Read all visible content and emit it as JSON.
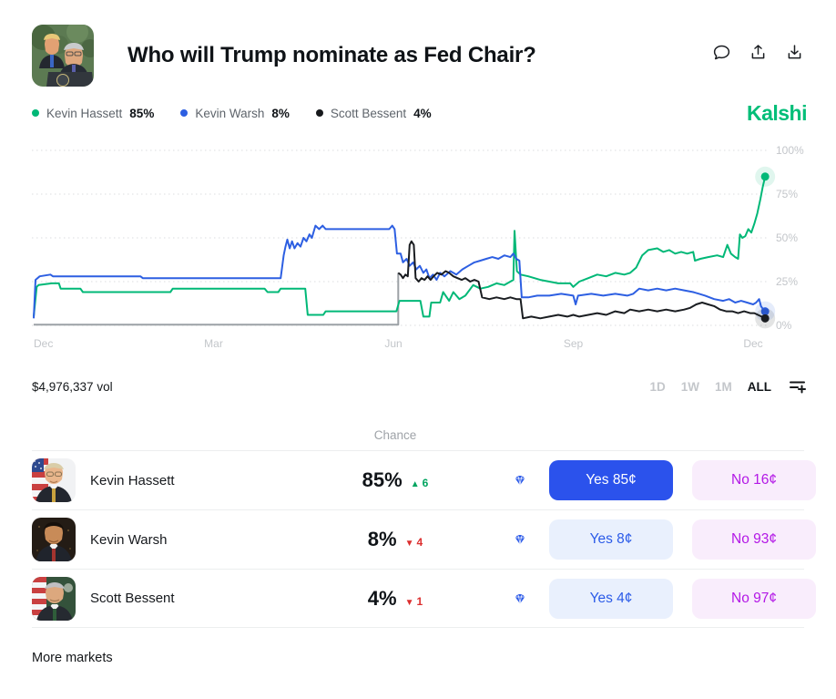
{
  "header": {
    "title": "Who will Trump nominate as Fed Chair?",
    "icons": [
      "comment-icon",
      "share-icon",
      "download-icon"
    ]
  },
  "legend": [
    {
      "name": "Kevin Hassett",
      "value": "85%",
      "color": "#00b877"
    },
    {
      "name": "Kevin Warsh",
      "value": "8%",
      "color": "#2d5fe2"
    },
    {
      "name": "Scott Bessent",
      "value": "4%",
      "color": "#17191c"
    }
  ],
  "brand": {
    "logo_text": "Kalshi",
    "color": "#00be78"
  },
  "chart_data": {
    "type": "line",
    "title": "Who will Trump nominate as Fed Chair?",
    "x_unit": "months (0 = first Dec, 12 = following Dec)",
    "xlim": [
      0,
      12.3
    ],
    "ylim": [
      0,
      100
    ],
    "grid": "dotted horizontal",
    "legend_position": "top-left",
    "x_ticks": [
      {
        "pos": 0,
        "label": "Dec"
      },
      {
        "pos": 3,
        "label": "Mar"
      },
      {
        "pos": 6,
        "label": "Jun"
      },
      {
        "pos": 9,
        "label": "Sep"
      },
      {
        "pos": 12,
        "label": "Dec"
      }
    ],
    "y_ticks": [
      {
        "pos": 100,
        "label": "100%"
      },
      {
        "pos": 75,
        "label": "75%"
      },
      {
        "pos": 50,
        "label": "50%"
      },
      {
        "pos": 25,
        "label": "25%"
      },
      {
        "pos": 0,
        "label": "0%"
      }
    ],
    "series": [
      {
        "name": "pre-listing baseline",
        "color": "#9ca1a6",
        "end_dot": false,
        "points": [
          [
            0,
            0.4
          ],
          [
            6.08,
            0.4
          ],
          [
            6.08,
            30
          ]
        ]
      },
      {
        "name": "Kevin Hassett",
        "color": "#00b877",
        "end_dot": true,
        "points": [
          [
            0,
            5
          ],
          [
            0.05,
            22
          ],
          [
            0.08,
            23
          ],
          [
            0.3,
            24
          ],
          [
            0.42,
            24
          ],
          [
            0.45,
            21
          ],
          [
            0.78,
            21
          ],
          [
            0.82,
            19
          ],
          [
            2.28,
            19
          ],
          [
            2.32,
            21
          ],
          [
            3.85,
            21
          ],
          [
            3.9,
            19
          ],
          [
            4.08,
            19
          ],
          [
            4.12,
            21
          ],
          [
            4.53,
            21
          ],
          [
            4.57,
            6
          ],
          [
            4.83,
            6
          ],
          [
            4.87,
            8
          ],
          [
            6.05,
            8
          ],
          [
            6.1,
            14
          ],
          [
            6.45,
            14
          ],
          [
            6.5,
            5
          ],
          [
            6.6,
            5
          ],
          [
            6.63,
            13
          ],
          [
            6.78,
            13
          ],
          [
            6.83,
            19
          ],
          [
            6.93,
            14
          ],
          [
            7.0,
            19
          ],
          [
            7.1,
            15
          ],
          [
            7.2,
            17
          ],
          [
            7.33,
            23
          ],
          [
            7.45,
            21
          ],
          [
            7.58,
            22
          ],
          [
            7.72,
            24
          ],
          [
            7.85,
            23
          ],
          [
            7.95,
            25
          ],
          [
            8.0,
            26
          ],
          [
            8.02,
            54
          ],
          [
            8.06,
            31
          ],
          [
            8.12,
            29
          ],
          [
            8.25,
            28
          ],
          [
            8.45,
            26
          ],
          [
            8.6,
            25
          ],
          [
            8.75,
            24
          ],
          [
            8.95,
            24
          ],
          [
            9.0,
            22
          ],
          [
            9.1,
            25
          ],
          [
            9.25,
            27
          ],
          [
            9.4,
            29
          ],
          [
            9.55,
            28
          ],
          [
            9.7,
            30
          ],
          [
            9.85,
            29
          ],
          [
            9.95,
            30
          ],
          [
            10.05,
            33
          ],
          [
            10.15,
            40
          ],
          [
            10.25,
            43
          ],
          [
            10.4,
            44
          ],
          [
            10.5,
            42
          ],
          [
            10.6,
            43
          ],
          [
            10.7,
            41
          ],
          [
            10.8,
            42
          ],
          [
            10.9,
            41
          ],
          [
            11.0,
            42
          ],
          [
            11.03,
            37
          ],
          [
            11.12,
            38
          ],
          [
            11.25,
            39
          ],
          [
            11.4,
            40
          ],
          [
            11.5,
            39
          ],
          [
            11.57,
            46
          ],
          [
            11.63,
            41
          ],
          [
            11.7,
            39
          ],
          [
            11.75,
            38
          ],
          [
            11.78,
            52
          ],
          [
            11.82,
            50
          ],
          [
            11.87,
            51
          ],
          [
            11.92,
            55
          ],
          [
            11.97,
            53
          ],
          [
            12.02,
            58
          ],
          [
            12.07,
            64
          ],
          [
            12.12,
            72
          ],
          [
            12.16,
            79
          ],
          [
            12.2,
            85
          ]
        ]
      },
      {
        "name": "Kevin Warsh",
        "color": "#2d5fe2",
        "end_dot": true,
        "points": [
          [
            0,
            4
          ],
          [
            0.03,
            26
          ],
          [
            0.1,
            28
          ],
          [
            0.28,
            29
          ],
          [
            0.32,
            28
          ],
          [
            1.78,
            28
          ],
          [
            1.82,
            27
          ],
          [
            4.12,
            27
          ],
          [
            4.17,
            40
          ],
          [
            4.2,
            45
          ],
          [
            4.23,
            49
          ],
          [
            4.27,
            44
          ],
          [
            4.31,
            48
          ],
          [
            4.35,
            44
          ],
          [
            4.4,
            47
          ],
          [
            4.45,
            45
          ],
          [
            4.5,
            50
          ],
          [
            4.55,
            48
          ],
          [
            4.6,
            52
          ],
          [
            4.64,
            50
          ],
          [
            4.7,
            57
          ],
          [
            4.76,
            55
          ],
          [
            4.82,
            57
          ],
          [
            4.87,
            55
          ],
          [
            5.93,
            55
          ],
          [
            5.98,
            57
          ],
          [
            6.02,
            55
          ],
          [
            6.06,
            41
          ],
          [
            6.12,
            41
          ],
          [
            6.16,
            36
          ],
          [
            6.22,
            38
          ],
          [
            6.27,
            34
          ],
          [
            6.33,
            36
          ],
          [
            6.38,
            32
          ],
          [
            6.44,
            34
          ],
          [
            6.5,
            30
          ],
          [
            6.55,
            32
          ],
          [
            6.6,
            27
          ],
          [
            6.66,
            29
          ],
          [
            6.72,
            26
          ],
          [
            6.78,
            30
          ],
          [
            6.85,
            28
          ],
          [
            6.95,
            31
          ],
          [
            7.05,
            29
          ],
          [
            7.15,
            32
          ],
          [
            7.25,
            34
          ],
          [
            7.35,
            36
          ],
          [
            7.45,
            37
          ],
          [
            7.55,
            38
          ],
          [
            7.65,
            39
          ],
          [
            7.75,
            38
          ],
          [
            7.85,
            40
          ],
          [
            7.95,
            39
          ],
          [
            8.0,
            41
          ],
          [
            8.05,
            38
          ],
          [
            8.1,
            37
          ],
          [
            8.14,
            16
          ],
          [
            8.25,
            16
          ],
          [
            8.4,
            17
          ],
          [
            8.6,
            17
          ],
          [
            8.8,
            18
          ],
          [
            9.0,
            17
          ],
          [
            9.04,
            12
          ],
          [
            9.08,
            17
          ],
          [
            9.3,
            18
          ],
          [
            9.5,
            17
          ],
          [
            9.7,
            18
          ],
          [
            9.9,
            17
          ],
          [
            10.0,
            18
          ],
          [
            10.1,
            21
          ],
          [
            10.25,
            20
          ],
          [
            10.4,
            21
          ],
          [
            10.55,
            20
          ],
          [
            10.7,
            21
          ],
          [
            10.85,
            20
          ],
          [
            11.0,
            19
          ],
          [
            11.1,
            18
          ],
          [
            11.2,
            17
          ],
          [
            11.35,
            15
          ],
          [
            11.5,
            14
          ],
          [
            11.6,
            15
          ],
          [
            11.7,
            13
          ],
          [
            11.8,
            14
          ],
          [
            11.9,
            13
          ],
          [
            12.0,
            12
          ],
          [
            12.05,
            13
          ],
          [
            12.1,
            15
          ],
          [
            12.13,
            11
          ],
          [
            12.17,
            9
          ],
          [
            12.2,
            8
          ]
        ]
      },
      {
        "name": "Scott Bessent",
        "color": "#1a1d21",
        "end_dot": true,
        "points": [
          [
            6.08,
            30
          ],
          [
            6.12,
            29
          ],
          [
            6.16,
            27
          ],
          [
            6.2,
            29
          ],
          [
            6.24,
            28
          ],
          [
            6.27,
            46
          ],
          [
            6.3,
            48
          ],
          [
            6.34,
            46
          ],
          [
            6.37,
            27
          ],
          [
            6.42,
            25
          ],
          [
            6.47,
            27
          ],
          [
            6.52,
            26
          ],
          [
            6.57,
            28
          ],
          [
            6.62,
            26
          ],
          [
            6.67,
            28
          ],
          [
            6.73,
            30
          ],
          [
            6.8,
            29
          ],
          [
            6.87,
            31
          ],
          [
            6.93,
            30
          ],
          [
            7.0,
            28
          ],
          [
            7.07,
            27
          ],
          [
            7.14,
            26
          ],
          [
            7.2,
            27
          ],
          [
            7.28,
            25
          ],
          [
            7.35,
            26
          ],
          [
            7.42,
            25
          ],
          [
            7.48,
            16
          ],
          [
            7.6,
            15
          ],
          [
            7.72,
            16
          ],
          [
            7.85,
            15
          ],
          [
            7.95,
            16
          ],
          [
            8.05,
            15
          ],
          [
            8.12,
            15
          ],
          [
            8.16,
            4
          ],
          [
            8.3,
            5
          ],
          [
            8.45,
            4
          ],
          [
            8.6,
            5
          ],
          [
            8.75,
            6
          ],
          [
            8.9,
            5
          ],
          [
            9.0,
            6
          ],
          [
            9.1,
            5
          ],
          [
            9.25,
            6
          ],
          [
            9.4,
            7
          ],
          [
            9.55,
            6
          ],
          [
            9.7,
            8
          ],
          [
            9.85,
            7
          ],
          [
            9.95,
            9
          ],
          [
            10.1,
            8
          ],
          [
            10.25,
            9
          ],
          [
            10.4,
            8
          ],
          [
            10.55,
            9
          ],
          [
            10.7,
            8
          ],
          [
            10.85,
            9
          ],
          [
            10.95,
            10
          ],
          [
            11.05,
            12
          ],
          [
            11.15,
            13
          ],
          [
            11.25,
            12
          ],
          [
            11.35,
            11
          ],
          [
            11.45,
            9
          ],
          [
            11.55,
            8
          ],
          [
            11.65,
            8
          ],
          [
            11.75,
            7
          ],
          [
            11.85,
            8
          ],
          [
            11.95,
            7
          ],
          [
            12.02,
            7
          ],
          [
            12.08,
            6
          ],
          [
            12.14,
            5
          ],
          [
            12.2,
            4
          ]
        ]
      }
    ]
  },
  "chart_footer": {
    "volume": "$4,976,337 vol",
    "ranges": [
      "1D",
      "1W",
      "1M",
      "ALL"
    ],
    "active_range": "ALL",
    "settings_icon": "add-indicator-icon"
  },
  "table": {
    "chance_header": "Chance",
    "rows": [
      {
        "name": "Kevin Hassett",
        "chance": "85%",
        "arrow": "▲",
        "delta": "6",
        "direction": "up",
        "yes_label": "Yes 85¢",
        "no_label": "No 16¢",
        "gem_icon": "diamond-icon"
      },
      {
        "name": "Kevin Warsh",
        "chance": "8%",
        "arrow": "▼",
        "delta": "4",
        "direction": "down",
        "yes_label": "Yes 8¢",
        "no_label": "No 93¢",
        "gem_icon": "diamond-icon"
      },
      {
        "name": "Scott Bessent",
        "chance": "4%",
        "arrow": "▼",
        "delta": "1",
        "direction": "down",
        "yes_label": "Yes 4¢",
        "no_label": "No 97¢",
        "gem_icon": "diamond-icon"
      }
    ]
  },
  "footer": {
    "more_markets": "More markets"
  },
  "colors": {
    "yes_solid_bg": "#2b52ec",
    "yes_light_bg": "#e9f0fd",
    "yes_text": "#2b5be8",
    "no_bg": "#f9edfc",
    "no_text": "#b318e6",
    "up_green": "#00a45f",
    "down_red": "#dc2f2f",
    "axis_label": "#c3c6ca",
    "grid": "#dbdddf",
    "brand_green": "#00be78"
  }
}
